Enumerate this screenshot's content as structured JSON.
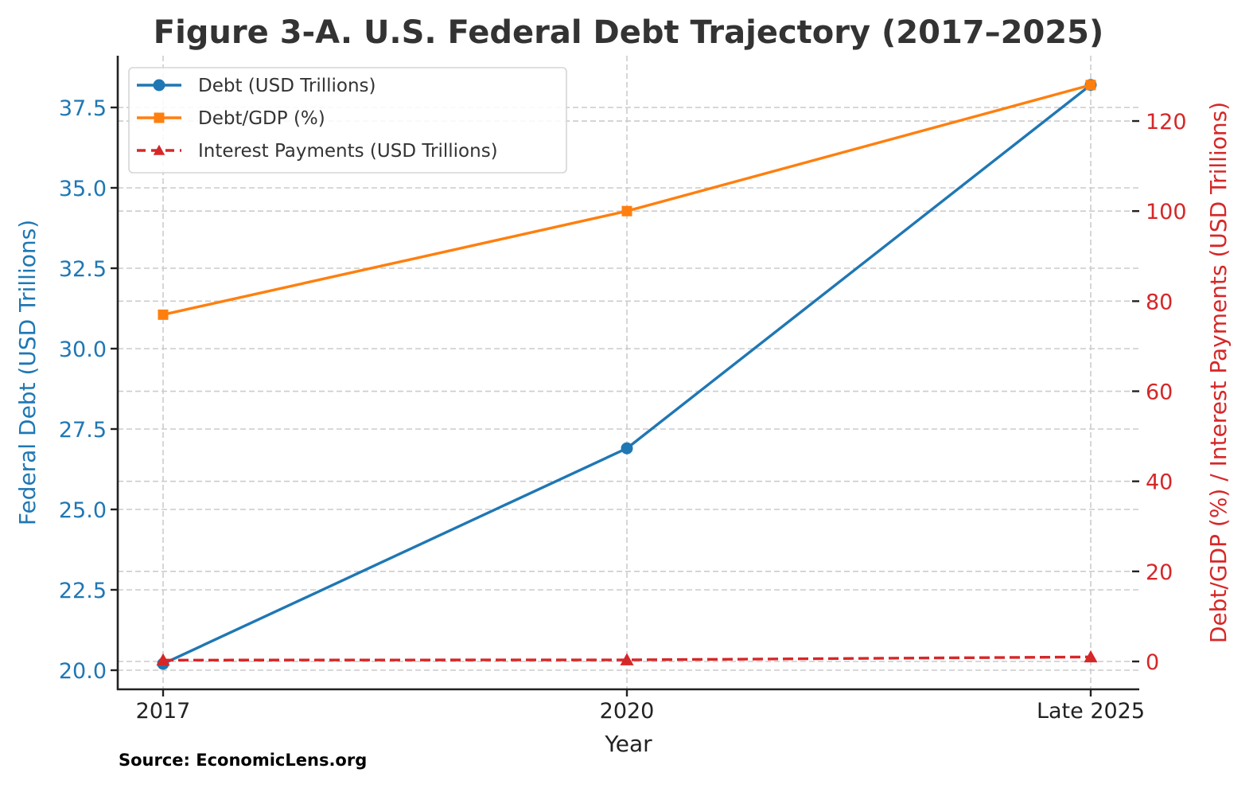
{
  "chart_data": {
    "type": "line",
    "title": "Figure 3-A. U.S. Federal Debt Trajectory (2017–2025)",
    "xlabel": "Year",
    "ylabel": "Federal Debt (USD Trillions)",
    "ylabel_right": "Debt/GDP (%) / Interest Payments (USD Trillions)",
    "categories": [
      "2017",
      "2020",
      "Late 2025"
    ],
    "series": [
      {
        "name": "Debt (USD Trillions)",
        "axis": "left",
        "color": "#1f77b4",
        "marker": "circle",
        "linestyle": "solid",
        "values": [
          20.2,
          26.9,
          38.2
        ]
      },
      {
        "name": "Debt/GDP (%)",
        "axis": "right",
        "color": "#ff7f0e",
        "marker": "square",
        "linestyle": "solid",
        "values": [
          77,
          100,
          128
        ]
      },
      {
        "name": "Interest Payments (USD Trillions)",
        "axis": "right",
        "color": "#d62728",
        "marker": "triangle",
        "linestyle": "dashed",
        "values": [
          0.3,
          0.35,
          1.0
        ]
      }
    ],
    "ylim": [
      19.4,
      39.2
    ],
    "ylim_right": [
      -5,
      133
    ],
    "yticks_left": [
      "20.0",
      "22.5",
      "25.0",
      "27.5",
      "30.0",
      "32.5",
      "35.0",
      "37.5"
    ],
    "yticks_right": [
      "0",
      "20",
      "40",
      "60",
      "80",
      "100",
      "120"
    ],
    "grid": true,
    "legend_position": "upper left",
    "annotation": "Source: EconomicLens.org"
  },
  "colors": {
    "left_axis": "#1f77b4",
    "right_axis": "#d62728",
    "debt": "#1f77b4",
    "debt_gdp": "#ff7f0e",
    "interest": "#d62728"
  }
}
